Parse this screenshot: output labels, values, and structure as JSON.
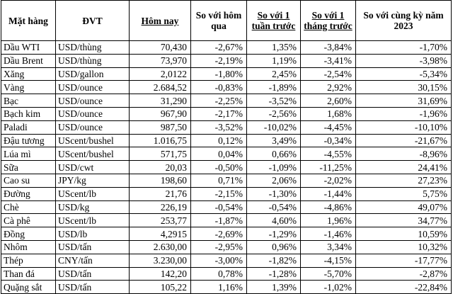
{
  "table": {
    "headers": [
      "Mặt hàng",
      "ĐVT",
      "Hôm nay",
      "So với hôm qua",
      "So với 1 tuần trước",
      "So với 1 tháng trước",
      "So với cùng kỳ năm 2023"
    ],
    "rows": [
      [
        "Dầu WTI",
        "USD/thùng",
        "70,430",
        "-2,67%",
        "1,35%",
        "-3,84%",
        "-1,70%"
      ],
      [
        "Dầu Brent",
        "USD/thùng",
        "73,970",
        "-2,19%",
        "1,19%",
        "-3,41%",
        "-3,98%"
      ],
      [
        "Xăng",
        "USD/gallon",
        "2,0122",
        "-1,80%",
        "2,45%",
        "-2,54%",
        "-5,34%"
      ],
      [
        "Vàng",
        "USD/ounce",
        "2.684,52",
        "-0,83%",
        "-1,89%",
        "2,92%",
        "30,15%"
      ],
      [
        "Bạc",
        "USD/ounce",
        "31,290",
        "-2,25%",
        "-3,52%",
        "2,60%",
        "31,69%"
      ],
      [
        "Bạch kim",
        "USD/ounce",
        "967,90",
        "-2,17%",
        "-2,56%",
        "1,68%",
        "-1,96%"
      ],
      [
        "Paladi",
        "USD/ounce",
        "987,50",
        "-3,52%",
        "-10,02%",
        "-4,45%",
        "-10,10%"
      ],
      [
        "Đậu tương",
        "UScent/bushel",
        "1.016,75",
        "0,12%",
        "3,49%",
        "-0,34%",
        "-21,67%"
      ],
      [
        "Lúa mì",
        "UScent/bushel",
        "571,75",
        "0,04%",
        "0,66%",
        "-4,55%",
        "-8,96%"
      ],
      [
        "Sữa",
        "USD/cwt",
        "20,03",
        "-0,50%",
        "-1,09%",
        "-11,25%",
        "24,41%"
      ],
      [
        "Cao su",
        "JPY/kg",
        "198,60",
        "0,71%",
        "2,06%",
        "-2,02%",
        "27,23%"
      ],
      [
        "Đường",
        "UScent/lb",
        "21,76",
        "-2,15%",
        "-1,30%",
        "-1,44%",
        "5,75%"
      ],
      [
        "Chè",
        "USD/kg",
        "226,19",
        "-0,54%",
        "-0,54%",
        "-4,86%",
        "49,07%"
      ],
      [
        "Cà phê",
        "UScent/lb",
        "253,77",
        "-1,87%",
        "4,60%",
        "1,96%",
        "34,77%"
      ],
      [
        "Đồng",
        "USD/lb",
        "4,2915",
        "-2,69%",
        "-1,29%",
        "-1,46%",
        "10,59%"
      ],
      [
        "Nhôm",
        "USD/tấn",
        "2.630,00",
        "-2,95%",
        "0,96%",
        "3,34%",
        "10,32%"
      ],
      [
        "Thép",
        "CNY/tấn",
        "3.230,00",
        "-3,00%",
        "-1,82%",
        "-4,15%",
        "-17,77%"
      ],
      [
        "Than đá",
        "USD/tấn",
        "142,20",
        "0,78%",
        "-1,28%",
        "-5,70%",
        "-2,87%"
      ],
      [
        "Quặng sắt",
        "USD/tấn",
        "105,22",
        "1,16%",
        "1,39%",
        "-1,02%",
        "-22,84%"
      ]
    ]
  }
}
